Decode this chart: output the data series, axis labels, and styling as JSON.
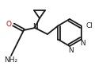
{
  "bg_color": "#ffffff",
  "line_color": "#1a1a1a",
  "lw": 1.3,
  "figsize": [
    1.34,
    0.83
  ],
  "dpi": 100,
  "xlim": [
    0,
    134
  ],
  "ylim": [
    0,
    83
  ],
  "O_color": "#dd0000",
  "N_color": "#1a1a1a",
  "Cl_color": "#1a1a1a",
  "font_size": 6.5
}
